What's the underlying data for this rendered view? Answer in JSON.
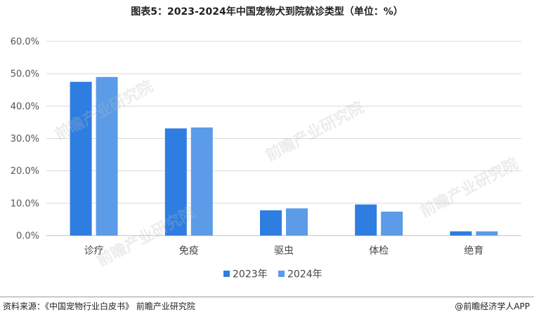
{
  "title": "图表5：2023-2024年中国宠物犬到院就诊类型（单位：%）",
  "chart_data": {
    "type": "bar",
    "title": "图表5：2023-2024年中国宠物犬到院就诊类型（单位：%）",
    "categories": [
      "诊疗",
      "免疫",
      "驱虫",
      "体检",
      "绝育"
    ],
    "series": [
      {
        "name": "2023年",
        "values": [
          47.5,
          33.1,
          7.8,
          9.6,
          1.3
        ],
        "color": "#2e7de1"
      },
      {
        "name": "2024年",
        "values": [
          49.0,
          33.4,
          8.4,
          7.4,
          1.3
        ],
        "color": "#5b9be8"
      }
    ],
    "ylim": [
      0,
      60
    ],
    "yticks": [
      "0.0%",
      "10.0%",
      "20.0%",
      "30.0%",
      "40.0%",
      "50.0%",
      "60.0%"
    ],
    "grid": true,
    "legend_position": "bottom"
  },
  "footer": {
    "source": "资料来源：《中国宠物行业白皮书》 前瞻产业研究院",
    "brand": "@前瞻经济学人APP"
  },
  "watermark": "前瞻产业研究院"
}
